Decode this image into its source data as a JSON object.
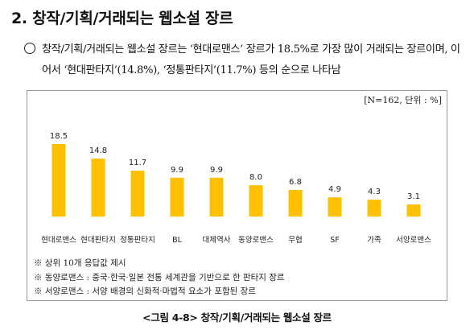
{
  "heading": "2. 창작/기획/거래되는 웹소설 장르",
  "summary": "창작/기획/거래되는 웹소설 장르는 ‘현대로맨스’ 장르가 18.5%로 가장 많이 거래되는 장르이며, 이어서 ‘현대판타지’(14.8%), ‘정통판타지’(11.7%) 등의 순으로 나타남",
  "chart_data": {
    "type": "bar",
    "unit_note": "[N=162, 단위 : %]",
    "categories": [
      "현대로맨스",
      "현대판타지",
      "정통판타지",
      "BL",
      "대체역사",
      "동양로맨스",
      "무협",
      "SF",
      "가족",
      "서양로맨스"
    ],
    "values": [
      18.5,
      14.8,
      11.7,
      9.9,
      9.9,
      8.0,
      6.8,
      4.9,
      4.3,
      3.1
    ],
    "value_labels": [
      "18.5",
      "14.8",
      "11.7",
      "9.9",
      "9.9",
      "8.0",
      "6.8",
      "4.9",
      "4.3",
      "3.1"
    ],
    "ylim": [
      0,
      20
    ],
    "grid": false,
    "bar_color": "#FFC000"
  },
  "notes": [
    "※ 상위 10개 응답값 제시",
    "※ 동양로맨스 : 중국·한국·일본 전통 세계관을 기반으로 한 판타지 장르",
    "※ 서양로맨스 : 서양 배경의 신화적·마법적 요소가 포함된 장르"
  ],
  "caption": "<그림 4-8> 창작/기획/거래되는 웹소설 장르"
}
